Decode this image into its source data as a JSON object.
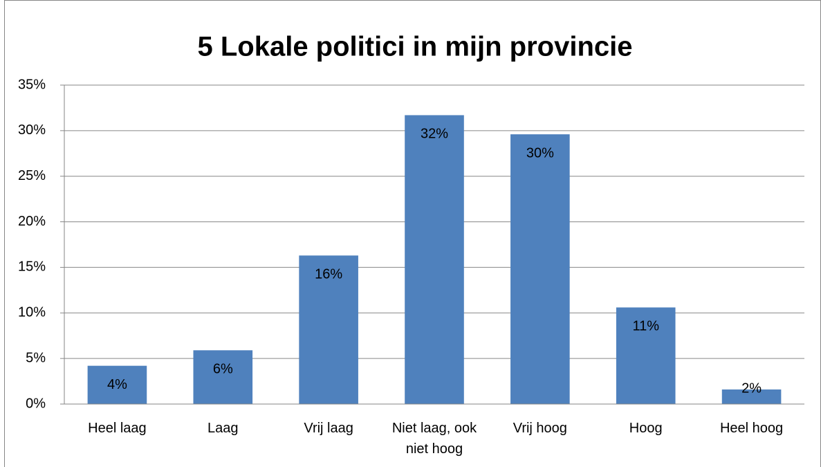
{
  "chart_data": {
    "type": "bar",
    "title": "5 Lokale politici in mijn provincie",
    "categories": [
      "Heel laag",
      "Laag",
      "Vrij laag",
      "Niet laag, ook niet hoog",
      "Vrij hoog",
      "Hoog",
      "Heel hoog"
    ],
    "values": [
      4.2,
      5.9,
      16.3,
      31.7,
      29.6,
      10.6,
      1.6
    ],
    "value_labels": [
      "4%",
      "6%",
      "16%",
      "32%",
      "30%",
      "11%",
      "2%"
    ],
    "color": "#4f81bd",
    "ylim": [
      0,
      35
    ],
    "yticks": [
      {
        "value": 0,
        "label": "0%"
      },
      {
        "value": 5,
        "label": "5%"
      },
      {
        "value": 10,
        "label": "10%"
      },
      {
        "value": 15,
        "label": "15%"
      },
      {
        "value": 20,
        "label": "20%"
      },
      {
        "value": 25,
        "label": "25%"
      },
      {
        "value": 30,
        "label": "30%"
      },
      {
        "value": 35,
        "label": "35%"
      }
    ],
    "grid": true
  }
}
